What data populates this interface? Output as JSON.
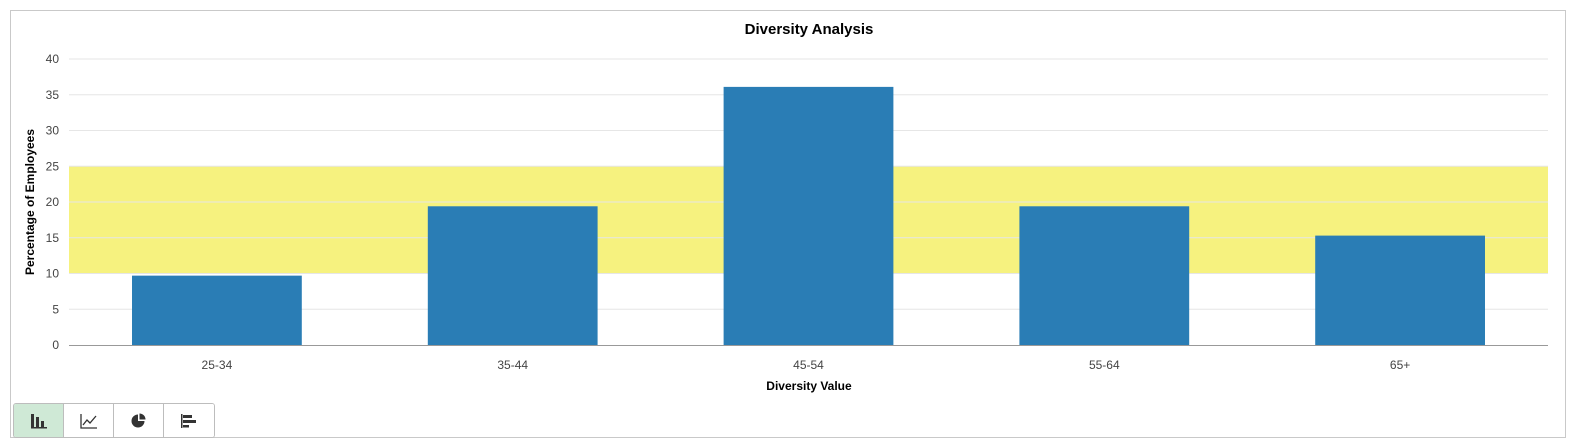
{
  "chart_data": {
    "type": "bar",
    "title": "Diversity Analysis",
    "xlabel": "Diversity Value",
    "ylabel": "Percentage of Employees",
    "categories": [
      "25-34",
      "35-44",
      "45-54",
      "55-64",
      "65+"
    ],
    "values": [
      9.7,
      19.4,
      36.1,
      19.4,
      15.3
    ],
    "ylim": [
      0,
      40
    ],
    "yticks": [
      0,
      5,
      10,
      15,
      20,
      25,
      30,
      35,
      40
    ],
    "target_band": [
      10,
      25
    ],
    "grid": true,
    "colors": {
      "bar": "#2a7db5",
      "band": "#f6f27f",
      "grid": "#e6e6e6",
      "axis": "#999999"
    }
  },
  "toolbar": {
    "buttons": [
      {
        "name": "bar-chart-button",
        "icon": "bar-chart-icon",
        "active": true
      },
      {
        "name": "line-chart-button",
        "icon": "line-chart-icon",
        "active": false
      },
      {
        "name": "pie-chart-button",
        "icon": "pie-chart-icon",
        "active": false
      },
      {
        "name": "horizontal-bar-chart-button",
        "icon": "horizontal-bar-chart-icon",
        "active": false
      }
    ]
  }
}
